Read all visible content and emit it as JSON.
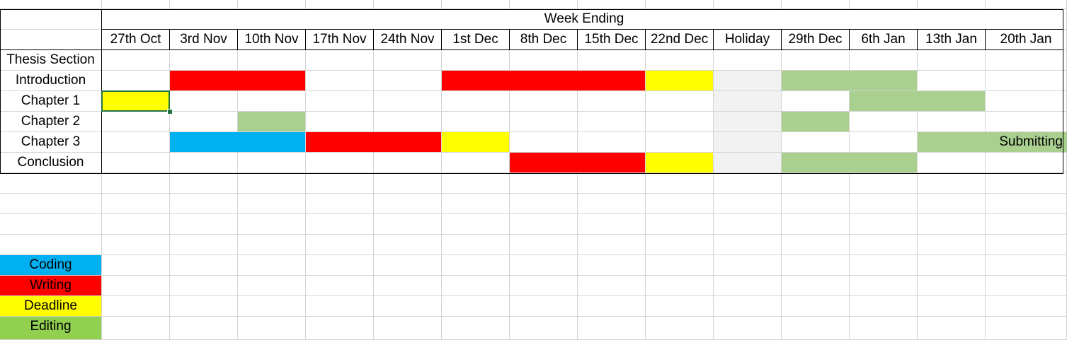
{
  "header": {
    "title": "Week Ending",
    "corner_label": "Thesis Section"
  },
  "weeks": [
    "27th Oct",
    "3rd Nov",
    "10th Nov",
    "17th Nov",
    "24th Nov",
    "1st Dec",
    "8th Dec",
    "15th Dec",
    "22nd Dec",
    "Holiday",
    "29th Dec",
    "6th Jan",
    "13th Jan",
    "20th Jan"
  ],
  "colors": {
    "Coding": "#00b0f0",
    "Writing": "#ff0000",
    "Deadline": "#ffff00",
    "Editing": "#a9d08e",
    "Holiday": "#f2f2f2",
    "LegendEditing": "#92d050"
  },
  "rows": [
    {
      "label": "Introduction",
      "cells": [
        "",
        "Writing",
        "Writing",
        "",
        "",
        "Writing",
        "Writing",
        "Writing",
        "Deadline",
        "Holiday",
        "Editing",
        "Editing",
        "",
        ""
      ]
    },
    {
      "label": "Chapter 1",
      "cells": [
        "Deadline",
        "",
        "",
        "",
        "",
        "",
        "",
        "",
        "",
        "Holiday",
        "",
        "Editing",
        "Editing",
        ""
      ]
    },
    {
      "label": "Chapter 2",
      "cells": [
        "",
        "",
        "Editing",
        "",
        "",
        "",
        "",
        "",
        "",
        "Holiday",
        "Editing",
        "",
        "",
        ""
      ]
    },
    {
      "label": "Chapter 3",
      "cells": [
        "",
        "Coding",
        "Coding",
        "Writing",
        "Writing",
        "Deadline",
        "",
        "",
        "",
        "Holiday",
        "",
        "",
        "Editing",
        "Editing"
      ],
      "note": "Submitting"
    },
    {
      "label": "Conclusion",
      "cells": [
        "",
        "",
        "",
        "",
        "",
        "",
        "Writing",
        "Writing",
        "Deadline",
        "Holiday",
        "Editing",
        "Editing",
        "",
        ""
      ]
    }
  ],
  "legend": [
    {
      "label": "Coding",
      "color": "#00b0f0"
    },
    {
      "label": "Writing",
      "color": "#ff0000"
    },
    {
      "label": "Deadline",
      "color": "#ffff00"
    },
    {
      "label": "Editing",
      "color": "#92d050"
    }
  ]
}
